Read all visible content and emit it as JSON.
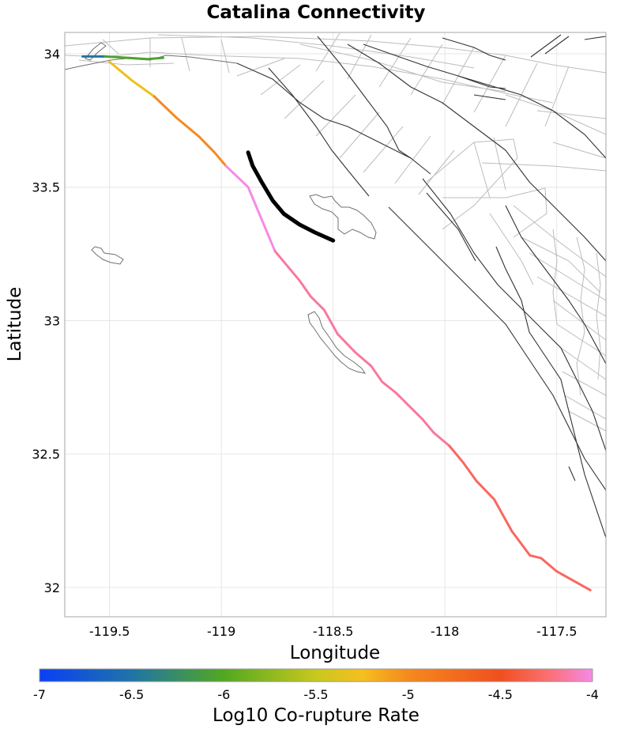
{
  "title": "Catalina Connectivity",
  "x_axis": {
    "label": "Longitude",
    "range": [
      -119.7,
      -117.28
    ],
    "ticks": [
      {
        "value": -119.5,
        "label": "-119.5"
      },
      {
        "value": -119.0,
        "label": "-119"
      },
      {
        "value": -118.5,
        "label": "-118.5"
      },
      {
        "value": -118.0,
        "label": "-118"
      },
      {
        "value": -117.5,
        "label": "-117.5"
      }
    ]
  },
  "y_axis": {
    "label": "Latitude",
    "range": [
      31.89,
      34.08
    ],
    "ticks": [
      {
        "value": 34.0,
        "label": "34"
      },
      {
        "value": 33.5,
        "label": "33.5"
      },
      {
        "value": 33.0,
        "label": "33"
      },
      {
        "value": 32.5,
        "label": "32.5"
      },
      {
        "value": 32.0,
        "label": "32"
      }
    ]
  },
  "grid": true,
  "colorbar": {
    "label": "Log10 Co-rupture Rate",
    "min": -7,
    "max": -4,
    "orientation": "horizontal",
    "placement": "bottom",
    "stops": [
      {
        "value": -7.0,
        "color": "#0a3ff5"
      },
      {
        "value": -6.5,
        "color": "#1f74a8"
      },
      {
        "value": -6.0,
        "color": "#52a820"
      },
      {
        "value": -5.5,
        "color": "#c8c81e"
      },
      {
        "value": -5.25,
        "color": "#f5bf1e"
      },
      {
        "value": -5.0,
        "color": "#f5891e"
      },
      {
        "value": -4.5,
        "color": "#f0501e"
      },
      {
        "value": -4.25,
        "color": "#fa6e6e"
      },
      {
        "value": -4.0,
        "color": "#f58ae6"
      }
    ],
    "ticks": [
      {
        "value": -7.0,
        "label": "-7"
      },
      {
        "value": -6.5,
        "label": "-6.5"
      },
      {
        "value": -6.0,
        "label": "-6"
      },
      {
        "value": -5.5,
        "label": "-5.5"
      },
      {
        "value": -5.0,
        "label": "-5"
      },
      {
        "value": -4.5,
        "label": "-4.5"
      },
      {
        "value": -4.0,
        "label": "-4"
      }
    ]
  },
  "source_fault": {
    "name": "Catalina",
    "color": "#000000",
    "trace": [
      [
        -118.88,
        33.63
      ],
      [
        -118.86,
        33.58
      ],
      [
        -118.82,
        33.52
      ],
      [
        -118.77,
        33.45
      ],
      [
        -118.72,
        33.4
      ],
      [
        -118.65,
        33.36
      ],
      [
        -118.58,
        33.33
      ],
      [
        -118.5,
        33.3
      ]
    ]
  },
  "rupture_segments": [
    {
      "rate": -6.5,
      "trace": [
        [
          -119.62,
          33.99
        ],
        [
          -119.52,
          33.99
        ]
      ]
    },
    {
      "rate": -6.05,
      "trace": [
        [
          -119.52,
          33.99
        ],
        [
          -119.42,
          33.985
        ],
        [
          -119.33,
          33.98
        ],
        [
          -119.26,
          33.985
        ]
      ]
    },
    {
      "rate": -5.3,
      "trace": [
        [
          -119.5,
          33.97
        ],
        [
          -119.4,
          33.9
        ],
        [
          -119.3,
          33.84
        ]
      ]
    },
    {
      "rate": -5.0,
      "trace": [
        [
          -119.3,
          33.84
        ],
        [
          -119.2,
          33.76
        ],
        [
          -119.1,
          33.69
        ],
        [
          -119.03,
          33.63
        ],
        [
          -118.98,
          33.58
        ]
      ]
    },
    {
      "rate": -4.0,
      "trace": [
        [
          -118.98,
          33.58
        ],
        [
          -118.93,
          33.54
        ],
        [
          -118.88,
          33.5
        ],
        [
          -118.82,
          33.38
        ],
        [
          -118.76,
          33.26
        ]
      ]
    },
    {
      "rate": -4.15,
      "trace": [
        [
          -118.76,
          33.26
        ],
        [
          -118.72,
          33.22
        ],
        [
          -118.65,
          33.15
        ],
        [
          -118.6,
          33.09
        ],
        [
          -118.54,
          33.04
        ],
        [
          -118.48,
          32.95
        ],
        [
          -118.4,
          32.88
        ],
        [
          -118.33,
          32.83
        ],
        [
          -118.28,
          32.77
        ],
        [
          -118.22,
          32.73
        ],
        [
          -118.16,
          32.68
        ],
        [
          -118.1,
          32.63
        ],
        [
          -118.05,
          32.58
        ],
        [
          -117.98,
          32.53
        ]
      ]
    },
    {
      "rate": -4.3,
      "trace": [
        [
          -117.98,
          32.53
        ],
        [
          -117.92,
          32.47
        ],
        [
          -117.86,
          32.4
        ],
        [
          -117.78,
          32.33
        ],
        [
          -117.7,
          32.21
        ],
        [
          -117.62,
          32.12
        ],
        [
          -117.57,
          32.11
        ],
        [
          -117.5,
          32.06
        ],
        [
          -117.35,
          31.99
        ]
      ]
    }
  ]
}
